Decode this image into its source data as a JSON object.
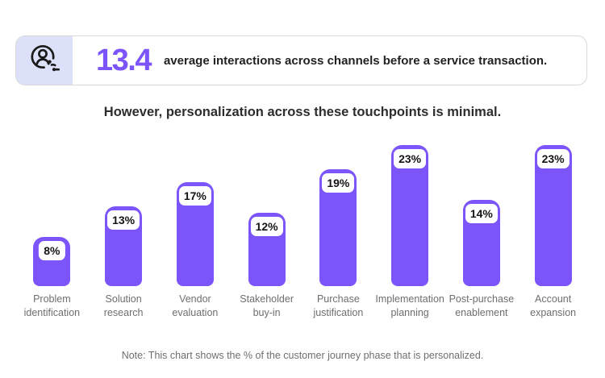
{
  "header": {
    "icon": "customer-journey-icon",
    "stat_value": "13.4",
    "stat_text": "average interactions across channels before a service transaction."
  },
  "subtitle": "However, personalization across these touchpoints is minimal.",
  "note": "Note: This chart shows the % of the customer journey phase that is personalized.",
  "colors": {
    "accent": "#7B55FA",
    "bar": "#7B55FA",
    "icon_background": "#DCE0F8",
    "card_border": "#D9D9D9",
    "muted_text": "#6E6E6E",
    "dark_text": "#222222"
  },
  "chart_data": {
    "type": "bar",
    "categories": [
      "Problem identification",
      "Solution research",
      "Vendor evaluation",
      "Stakeholder buy-in",
      "Purchase justification",
      "Implementation planning",
      "Post-purchase enablement",
      "Account expansion"
    ],
    "values": [
      8,
      13,
      17,
      12,
      19,
      23,
      14,
      23
    ],
    "value_labels": [
      "8%",
      "13%",
      "17%",
      "12%",
      "19%",
      "23%",
      "14%",
      "23%"
    ],
    "title": "However, personalization across these touchpoints is minimal.",
    "xlabel": "",
    "ylabel": "",
    "ylim": [
      0,
      23
    ],
    "grid": false,
    "axes_visible": false,
    "legend": "none",
    "data_labels": "percentage shown in white rounded pill inside top of each bar",
    "bar_color": "#7B55FA"
  }
}
